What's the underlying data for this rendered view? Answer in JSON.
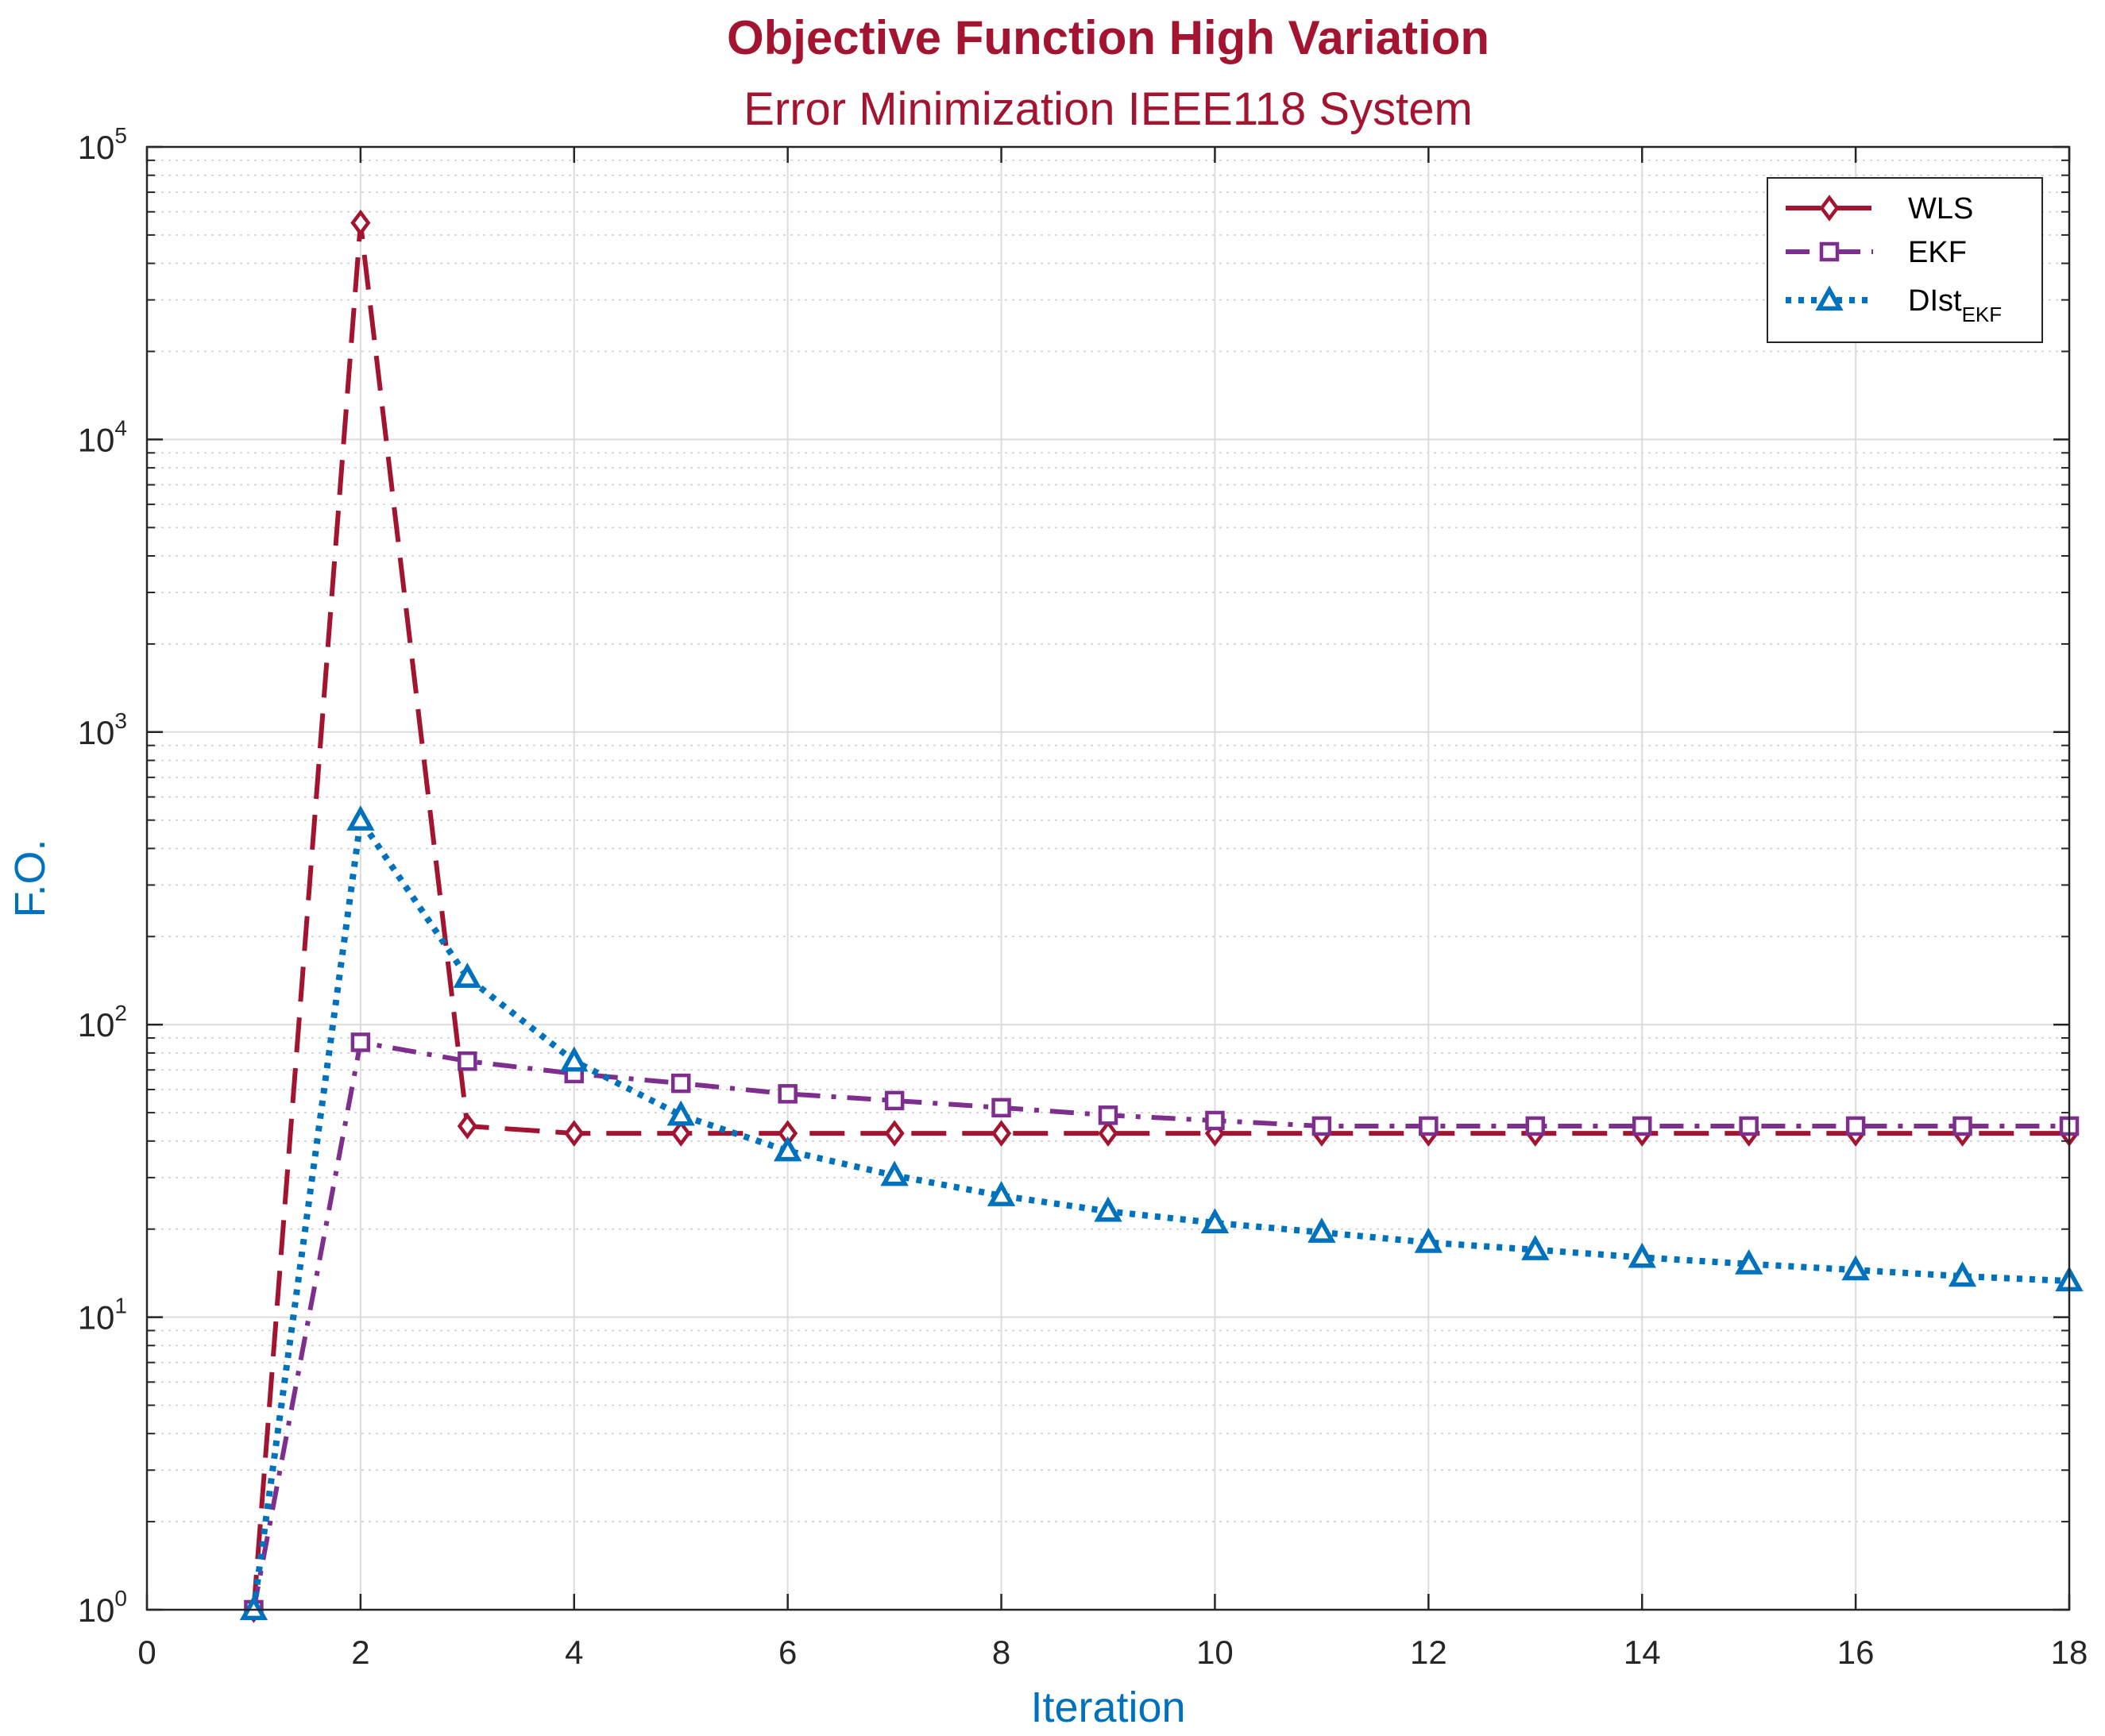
{
  "chart_data": {
    "type": "line",
    "title": "Objective Function High Variation",
    "subtitle": "Error Minimization IEEE118 System",
    "xlabel": "Iteration",
    "ylabel": "F.O.",
    "xlim": [
      0,
      18
    ],
    "ylim": [
      1,
      100000
    ],
    "yscale": "log",
    "grid": true,
    "minor_grid": true,
    "legend_position": "top-right",
    "x_ticks": [
      "0",
      "2",
      "4",
      "6",
      "8",
      "10",
      "12",
      "14",
      "16",
      "18"
    ],
    "x_tick_values": [
      0,
      2,
      4,
      6,
      8,
      10,
      12,
      14,
      16,
      18
    ],
    "y_ticks": [
      {
        "base": "10",
        "exp": "0",
        "value": 1
      },
      {
        "base": "10",
        "exp": "1",
        "value": 10
      },
      {
        "base": "10",
        "exp": "2",
        "value": 100
      },
      {
        "base": "10",
        "exp": "3",
        "value": 1000
      },
      {
        "base": "10",
        "exp": "4",
        "value": 10000
      },
      {
        "base": "10",
        "exp": "5",
        "value": 100000
      }
    ],
    "x": [
      1,
      2,
      3,
      4,
      5,
      6,
      7,
      8,
      9,
      10,
      11,
      12,
      13,
      14,
      15,
      16,
      17,
      18
    ],
    "series": [
      {
        "name": "WLS",
        "color": "#a2142f",
        "marker": "diamond",
        "line": "dashed",
        "values": [
          1,
          55000,
          45,
          42.5,
          42.5,
          42.5,
          42.5,
          42.5,
          42.5,
          42.5,
          42.5,
          42.5,
          42.5,
          42.5,
          42.5,
          42.5,
          42.5,
          42.5
        ]
      },
      {
        "name": "EKF",
        "color": "#7e2f8e",
        "marker": "square",
        "line": "dashdot",
        "values": [
          1,
          87,
          75,
          68,
          63,
          58,
          55,
          52,
          49,
          47,
          45,
          45,
          45,
          45,
          45,
          45,
          45,
          45
        ]
      },
      {
        "name": "DIst",
        "name_sub": "EKF",
        "color": "#0072bd",
        "marker": "triangle",
        "line": "dotted",
        "values": [
          1,
          500,
          145,
          75,
          49,
          37,
          30.5,
          26,
          23,
          21,
          19.5,
          18,
          17,
          16,
          15.2,
          14.5,
          13.8,
          13.3
        ]
      }
    ]
  },
  "colors": {
    "title": "#a2142f",
    "axis_label": "#0072bd",
    "axes": "#262626",
    "grid": "#dfdfdf"
  }
}
